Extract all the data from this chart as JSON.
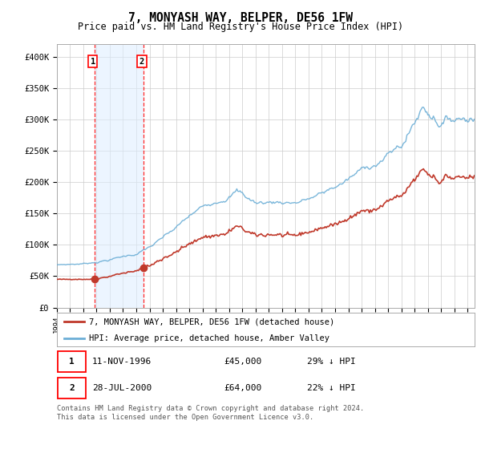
{
  "title": "7, MONYASH WAY, BELPER, DE56 1FW",
  "subtitle": "Price paid vs. HM Land Registry's House Price Index (HPI)",
  "hpi_color": "#6baed6",
  "property_color": "#c0392b",
  "ylim": [
    0,
    420000
  ],
  "yticks": [
    0,
    50000,
    100000,
    150000,
    200000,
    250000,
    300000,
    350000,
    400000
  ],
  "ytick_labels": [
    "£0",
    "£50K",
    "£100K",
    "£150K",
    "£200K",
    "£250K",
    "£300K",
    "£350K",
    "£400K"
  ],
  "xlim_start": 1994.0,
  "xlim_end": 2025.5,
  "transaction1_date": 1996.87,
  "transaction1_price": 45000,
  "transaction1_label": "1",
  "transaction2_date": 2000.57,
  "transaction2_price": 64000,
  "transaction2_label": "2",
  "legend_property": "7, MONYASH WAY, BELPER, DE56 1FW (detached house)",
  "legend_hpi": "HPI: Average price, detached house, Amber Valley",
  "table_row1": [
    "1",
    "11-NOV-1996",
    "£45,000",
    "29% ↓ HPI"
  ],
  "table_row2": [
    "2",
    "28-JUL-2000",
    "£64,000",
    "22% ↓ HPI"
  ],
  "footnote": "Contains HM Land Registry data © Crown copyright and database right 2024.\nThis data is licensed under the Open Government Licence v3.0.",
  "bg_color": "#ffffff",
  "grid_color": "#cccccc",
  "hatch_region_color": "#ddeeff",
  "hatch_edge_color": "#b8d4ee"
}
